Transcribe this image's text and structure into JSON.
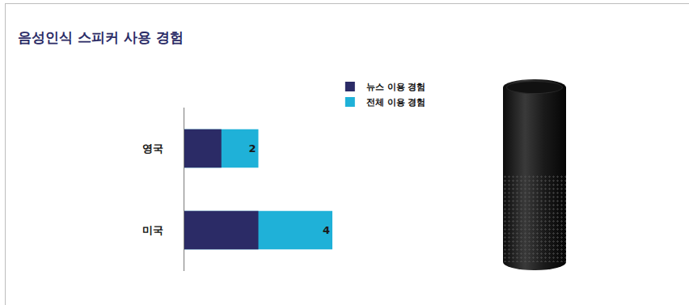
{
  "chart_data": {
    "type": "bar",
    "title": "음성인식 스피커 사용 경험",
    "orientation": "horizontal",
    "stacked": false,
    "categories": [
      "영국",
      "미국"
    ],
    "series": [
      {
        "name": "전체 이용 경험",
        "color": "#1fb1d8",
        "values": [
          2,
          4
        ],
        "data_labels": true
      },
      {
        "name": "뉴스 이용 경험",
        "color": "#2b2b66",
        "values": [
          1,
          2
        ]
      }
    ],
    "xlim": [
      0,
      4
    ],
    "tick_labels": "y",
    "legend": "top right",
    "grid": false
  }
}
